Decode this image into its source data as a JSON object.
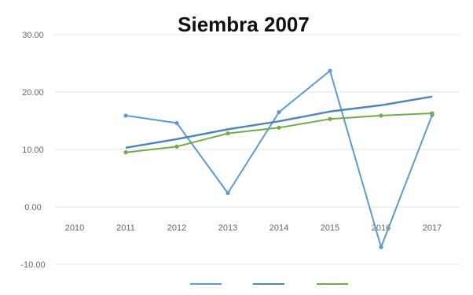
{
  "chart_data": {
    "type": "line",
    "title": "Siembra 2007",
    "xlabel": "",
    "ylabel": "",
    "categories": [
      "2010",
      "2011",
      "2012",
      "2013",
      "2014",
      "2015",
      "2016",
      "2017"
    ],
    "y_tick_labels": [
      "30.00",
      "20.00",
      "10.00",
      "0.00",
      "-10.00"
    ],
    "ylim": [
      -10,
      30
    ],
    "grid": true,
    "legend_position": "bottom",
    "series": [
      {
        "values": [
          null,
          15.9,
          14.6,
          2.4,
          16.5,
          23.7,
          -7.0,
          16.0
        ],
        "color": "#5b9bd5",
        "marker": true
      },
      {
        "values": [
          null,
          10.3,
          11.8,
          13.5,
          14.9,
          16.6,
          17.7,
          19.2
        ],
        "color": "#4f87b8",
        "marker": false
      },
      {
        "values": [
          null,
          9.5,
          10.5,
          12.8,
          13.8,
          15.3,
          15.9,
          16.3
        ],
        "color": "#70ad47",
        "marker": true
      }
    ]
  }
}
